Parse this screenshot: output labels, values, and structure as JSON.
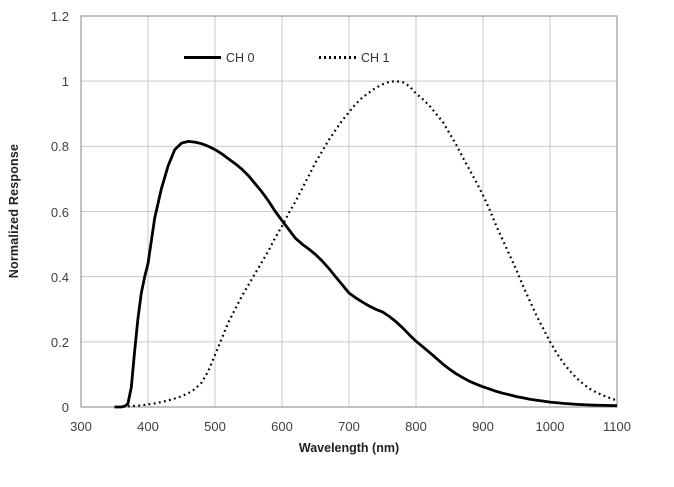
{
  "figure": {
    "background": "#ffffff",
    "grid_color": "#c9c9c9",
    "border_color": "#9a9a9a",
    "axis_text_color": "#404040",
    "title_text_color": "#1f1f1f",
    "line_color": "#000000"
  },
  "chart_data": {
    "type": "line",
    "title": "",
    "xlabel": "Wavelength (nm)",
    "ylabel": "Normalized Response",
    "xlim": [
      300,
      1100
    ],
    "ylim": [
      0,
      1.2
    ],
    "grid": true,
    "legend_position": "top-inside",
    "x_ticks": [
      {
        "label": "300",
        "value": 300
      },
      {
        "label": "400",
        "value": 400
      },
      {
        "label": "500",
        "value": 500
      },
      {
        "label": "600",
        "value": 600
      },
      {
        "label": "700",
        "value": 700
      },
      {
        "label": "800",
        "value": 800
      },
      {
        "label": "900",
        "value": 900
      },
      {
        "label": "1000",
        "value": 1000
      },
      {
        "label": "1100",
        "value": 1100
      }
    ],
    "y_ticks": [
      {
        "label": "0",
        "value": 0
      },
      {
        "label": "0.2",
        "value": 0.2
      },
      {
        "label": "0.4",
        "value": 0.4
      },
      {
        "label": "0.6",
        "value": 0.6
      },
      {
        "label": "0.8",
        "value": 0.8
      },
      {
        "label": "1",
        "value": 1.0
      },
      {
        "label": "1.2",
        "value": 1.2
      }
    ],
    "series": [
      {
        "name": "CH 0",
        "style": "solid",
        "x": [
          350,
          360,
          365,
          370,
          375,
          380,
          385,
          390,
          395,
          400,
          410,
          420,
          430,
          440,
          450,
          460,
          470,
          480,
          490,
          500,
          510,
          520,
          530,
          540,
          550,
          560,
          570,
          580,
          590,
          600,
          610,
          620,
          630,
          640,
          650,
          660,
          670,
          680,
          690,
          700,
          710,
          720,
          730,
          740,
          750,
          760,
          770,
          780,
          790,
          800,
          810,
          820,
          830,
          840,
          850,
          860,
          870,
          880,
          890,
          900,
          910,
          920,
          930,
          940,
          950,
          960,
          970,
          980,
          990,
          1000,
          1020,
          1040,
          1060,
          1080,
          1100
        ],
        "values": [
          0,
          0,
          0.002,
          0.01,
          0.06,
          0.17,
          0.27,
          0.35,
          0.4,
          0.44,
          0.58,
          0.67,
          0.74,
          0.79,
          0.81,
          0.815,
          0.813,
          0.808,
          0.8,
          0.79,
          0.777,
          0.762,
          0.747,
          0.73,
          0.71,
          0.685,
          0.66,
          0.632,
          0.6,
          0.572,
          0.545,
          0.518,
          0.5,
          0.485,
          0.468,
          0.448,
          0.425,
          0.4,
          0.375,
          0.35,
          0.335,
          0.322,
          0.31,
          0.3,
          0.292,
          0.278,
          0.262,
          0.243,
          0.222,
          0.202,
          0.185,
          0.168,
          0.15,
          0.132,
          0.116,
          0.102,
          0.09,
          0.079,
          0.07,
          0.062,
          0.055,
          0.048,
          0.042,
          0.037,
          0.032,
          0.028,
          0.024,
          0.021,
          0.018,
          0.015,
          0.011,
          0.008,
          0.006,
          0.005,
          0.004
        ]
      },
      {
        "name": "CH 1",
        "style": "dotted",
        "x": [
          370,
          390,
          400,
          410,
          420,
          430,
          440,
          450,
          460,
          470,
          480,
          490,
          500,
          510,
          520,
          530,
          540,
          550,
          560,
          570,
          580,
          590,
          600,
          610,
          620,
          630,
          640,
          650,
          660,
          670,
          680,
          690,
          700,
          710,
          720,
          730,
          740,
          750,
          760,
          770,
          780,
          790,
          800,
          810,
          820,
          830,
          840,
          850,
          860,
          870,
          880,
          890,
          900,
          910,
          920,
          930,
          940,
          950,
          960,
          970,
          980,
          990,
          1000,
          1010,
          1020,
          1030,
          1040,
          1050,
          1060,
          1070,
          1080,
          1090,
          1100
        ],
        "values": [
          0.002,
          0.005,
          0.008,
          0.011,
          0.015,
          0.02,
          0.026,
          0.033,
          0.042,
          0.055,
          0.075,
          0.11,
          0.16,
          0.21,
          0.26,
          0.3,
          0.34,
          0.375,
          0.41,
          0.445,
          0.48,
          0.52,
          0.555,
          0.595,
          0.63,
          0.67,
          0.71,
          0.75,
          0.785,
          0.82,
          0.85,
          0.88,
          0.905,
          0.93,
          0.95,
          0.965,
          0.98,
          0.99,
          0.998,
          1.0,
          0.997,
          0.985,
          0.962,
          0.945,
          0.925,
          0.9,
          0.875,
          0.84,
          0.805,
          0.765,
          0.728,
          0.69,
          0.65,
          0.605,
          0.555,
          0.51,
          0.465,
          0.42,
          0.37,
          0.325,
          0.28,
          0.24,
          0.2,
          0.165,
          0.135,
          0.11,
          0.088,
          0.07,
          0.055,
          0.044,
          0.035,
          0.027,
          0.02
        ]
      }
    ]
  }
}
